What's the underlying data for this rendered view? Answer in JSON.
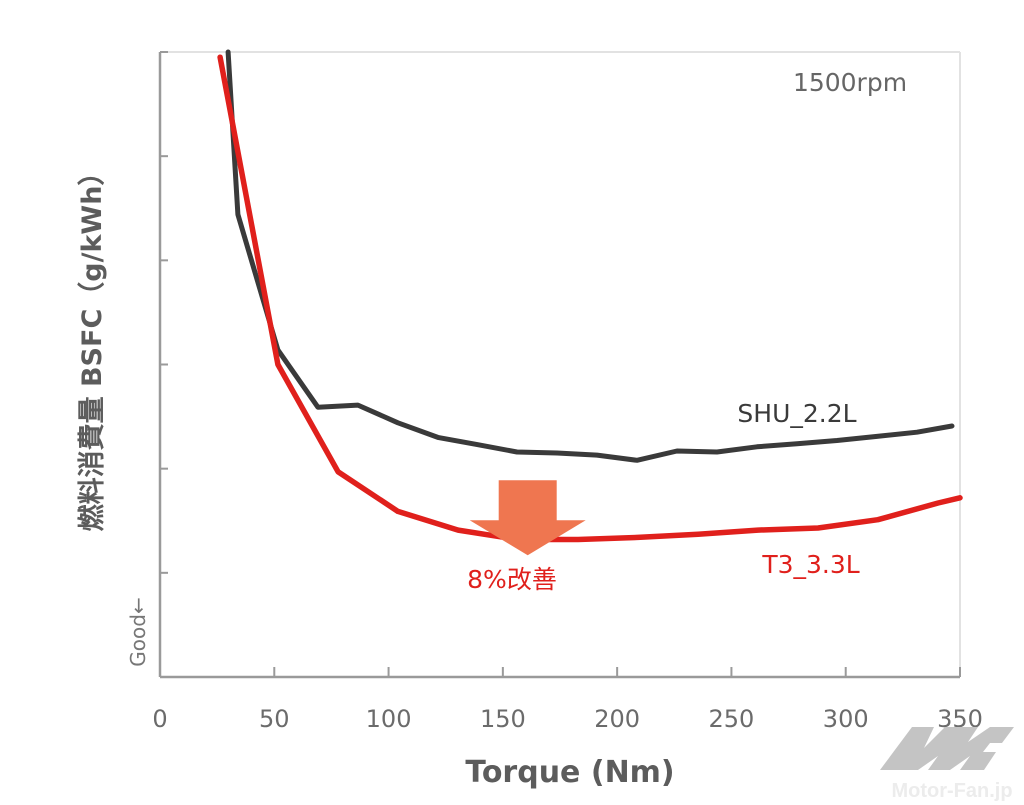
{
  "chart_data": {
    "type": "line",
    "title": "",
    "xlabel": "Torque (Nm)",
    "ylabel": "燃料消費量 BSFC（g/kWh）",
    "ylabel_note": "Good←",
    "xlim": [
      0,
      350
    ],
    "ylim": [
      0,
      6
    ],
    "x_ticks": [
      0,
      50,
      100,
      150,
      200,
      250,
      300,
      350
    ],
    "x_tick_labels": [
      "0",
      "50",
      "100",
      "150",
      "200",
      "250",
      "300",
      "350"
    ],
    "y_ticks": [
      0,
      1,
      2,
      3,
      4,
      5,
      6
    ],
    "y_tick_labels_visible": false,
    "grid": false,
    "condition_label": "1500rpm",
    "series": [
      {
        "name": "SHU_2.2L",
        "color": "#3a3a3a",
        "x": [
          29.8,
          34.1,
          51.6,
          69.1,
          86.6,
          104.1,
          121.6,
          139.1,
          156.2,
          173.7,
          191.2,
          208.7,
          226.2,
          243.7,
          261.2,
          278.7,
          296.2,
          313.7,
          331.2,
          346.5
        ],
        "y": [
          6.0,
          4.44,
          3.14,
          2.59,
          2.61,
          2.44,
          2.3,
          2.23,
          2.16,
          2.15,
          2.13,
          2.08,
          2.17,
          2.16,
          2.21,
          2.24,
          2.27,
          2.31,
          2.35,
          2.41
        ]
      },
      {
        "name": "T3_3.3L",
        "color": "#e0201c",
        "x": [
          26.3,
          51.6,
          77.9,
          104.1,
          130.4,
          156.6,
          182.9,
          209.1,
          235.4,
          261.6,
          287.9,
          314.1,
          340.4,
          350.0
        ],
        "y": [
          5.95,
          3.0,
          1.97,
          1.59,
          1.41,
          1.32,
          1.32,
          1.34,
          1.37,
          1.41,
          1.43,
          1.51,
          1.67,
          1.72
        ]
      }
    ],
    "annotations": [
      {
        "text": "8%改善",
        "color": "#e0201c",
        "arrow_color": "#ef7650",
        "arrow_x": 160,
        "arrow_from_y": 2.1,
        "arrow_to_y": 1.38
      }
    ]
  },
  "watermark": {
    "logo_text": "MF",
    "site": "Motor-Fan.jp"
  },
  "colors": {
    "axis": "#9a9a9a",
    "frame": "#e2e2e2",
    "text": "#6b6b6b"
  }
}
